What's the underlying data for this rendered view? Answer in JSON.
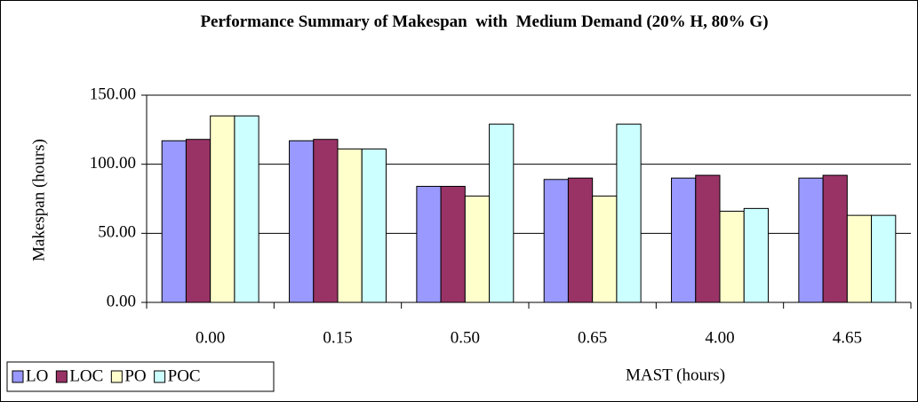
{
  "chart_data": {
    "type": "bar",
    "title": "Performance Summary of Makespan  with  Medium Demand (20% H, 80% G)",
    "x_label": "MAST (hours)",
    "y_label": "Makespan (hours)",
    "categories": [
      "0.00",
      "0.15",
      "0.50",
      "0.65",
      "4.00",
      "4.65"
    ],
    "series": [
      {
        "name": "LO",
        "color": "#9999ff",
        "values": [
          117,
          117,
          84,
          89,
          90,
          90
        ]
      },
      {
        "name": "LOC",
        "color": "#993366",
        "values": [
          118,
          118,
          84,
          90,
          92,
          92
        ]
      },
      {
        "name": "PO",
        "color": "#ffffcc",
        "values": [
          135,
          111,
          77,
          77,
          66,
          63
        ]
      },
      {
        "name": "POC",
        "color": "#ccffff",
        "values": [
          135,
          111,
          129,
          129,
          68,
          63
        ]
      }
    ],
    "ylim": [
      0,
      150
    ],
    "yticks": [
      {
        "value": 0,
        "label": "0.00"
      },
      {
        "value": 50,
        "label": "50.00"
      },
      {
        "value": 100,
        "label": "100.00"
      },
      {
        "value": 150,
        "label": "150.00"
      }
    ],
    "grid": true,
    "legend": "bottom-left"
  }
}
